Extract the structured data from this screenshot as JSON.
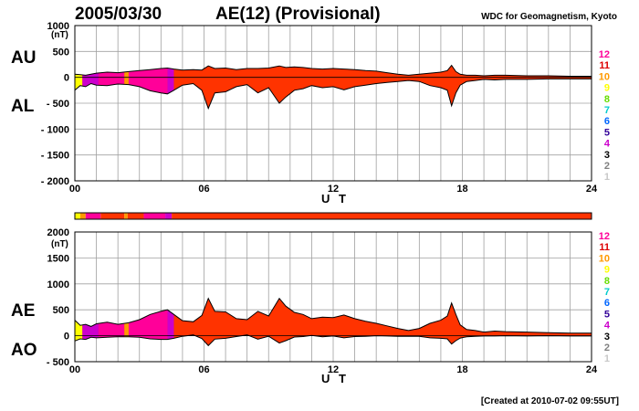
{
  "header": {
    "date": "2005/03/30",
    "title": "AE(12) (Provisional)",
    "source": "WDC for Geomagnetism, Kyoto"
  },
  "footer": {
    "created": "[Created at 2010-07-02 09:55UT]"
  },
  "colors": {
    "fill": "#ff3300",
    "outline": "#000000",
    "grid": "#a0a0a0",
    "stations_palette": {
      "1": "#c8c8c8",
      "2": "#808080",
      "3": "#000000",
      "4": "#cc00cc",
      "5": "#330099",
      "6": "#0066ff",
      "7": "#00cccc",
      "8": "#66dd00",
      "9": "#ffff00",
      "10": "#ff9900",
      "11": "#dd0000",
      "12": "#ff0099"
    }
  },
  "legend": [
    "12",
    "11",
    "10",
    "9",
    "8",
    "7",
    "6",
    "5",
    "4",
    "3",
    "2",
    "1"
  ],
  "chart_data": [
    {
      "type": "area",
      "panel": "AU/AL",
      "labels": {
        "upper": "AU",
        "lower": "AL"
      },
      "unit": "(nT)",
      "xlabel": "U T",
      "xlim": [
        0,
        24
      ],
      "xticks": [
        "00",
        "06",
        "12",
        "18",
        "24"
      ],
      "ylim": [
        -2000,
        1000
      ],
      "yticks": [
        "1000",
        "500",
        "0",
        "- 500",
        "- 1000",
        "- 1500",
        "- 2000"
      ],
      "grid": true,
      "x": [
        0,
        0.25,
        0.5,
        0.75,
        1,
        1.5,
        2,
        2.5,
        3,
        3.5,
        4,
        4.3,
        4.6,
        5,
        5.5,
        5.9,
        6.2,
        6.5,
        7,
        7.5,
        8,
        8.5,
        9,
        9.5,
        9.8,
        10.2,
        10.6,
        11,
        11.5,
        12,
        12.5,
        13,
        13.5,
        14,
        14.5,
        15,
        15.5,
        16,
        16.5,
        17,
        17.3,
        17.5,
        17.7,
        17.9,
        18.2,
        18.6,
        19,
        19.5,
        20,
        21,
        22,
        23,
        24
      ],
      "series": [
        {
          "name": "AU",
          "values": [
            60,
            50,
            40,
            60,
            80,
            100,
            90,
            110,
            130,
            150,
            170,
            180,
            160,
            140,
            150,
            140,
            220,
            170,
            180,
            150,
            170,
            170,
            180,
            220,
            190,
            200,
            190,
            170,
            160,
            170,
            160,
            150,
            130,
            120,
            90,
            60,
            40,
            60,
            80,
            100,
            130,
            230,
            110,
            60,
            40,
            40,
            30,
            40,
            40,
            30,
            30,
            20,
            20
          ]
        },
        {
          "name": "AL",
          "values": [
            -250,
            -160,
            -180,
            -120,
            -150,
            -160,
            -130,
            -140,
            -180,
            -260,
            -300,
            -320,
            -250,
            -150,
            -120,
            -250,
            -600,
            -300,
            -280,
            -180,
            -140,
            -300,
            -200,
            -500,
            -380,
            -250,
            -220,
            -160,
            -200,
            -180,
            -240,
            -180,
            -150,
            -120,
            -100,
            -80,
            -60,
            -80,
            -160,
            -200,
            -250,
            -550,
            -300,
            -150,
            -80,
            -60,
            -40,
            -50,
            -40,
            -40,
            -30,
            -30,
            -30
          ]
        }
      ]
    },
    {
      "type": "area",
      "panel": "AE/AO",
      "labels": {
        "upper": "AE",
        "lower": "AO"
      },
      "unit": "(nT)",
      "xlabel": "U T",
      "xlim": [
        0,
        24
      ],
      "xticks": [
        "00",
        "06",
        "12",
        "18",
        "24"
      ],
      "ylim": [
        -500,
        2000
      ],
      "yticks": [
        "2000",
        "1500",
        "1000",
        "500",
        "0",
        "- 500"
      ],
      "grid": true,
      "x": [
        0,
        0.25,
        0.5,
        0.75,
        1,
        1.5,
        2,
        2.5,
        3,
        3.5,
        4,
        4.3,
        4.6,
        5,
        5.5,
        5.9,
        6.2,
        6.5,
        7,
        7.5,
        8,
        8.5,
        9,
        9.5,
        9.8,
        10.2,
        10.6,
        11,
        11.5,
        12,
        12.5,
        13,
        13.5,
        14,
        14.5,
        15,
        15.5,
        16,
        16.5,
        17,
        17.3,
        17.5,
        17.7,
        17.9,
        18.2,
        18.6,
        19,
        19.5,
        20,
        21,
        22,
        23,
        24
      ],
      "series": [
        {
          "name": "AE",
          "values": [
            300,
            200,
            220,
            180,
            230,
            260,
            220,
            250,
            310,
            410,
            470,
            500,
            410,
            290,
            270,
            390,
            720,
            470,
            460,
            330,
            310,
            470,
            380,
            720,
            570,
            450,
            410,
            330,
            360,
            350,
            400,
            330,
            280,
            240,
            190,
            140,
            100,
            140,
            240,
            300,
            380,
            630,
            410,
            210,
            120,
            100,
            70,
            90,
            80,
            70,
            60,
            50,
            50
          ]
        },
        {
          "name": "AO",
          "values": [
            -100,
            -60,
            -70,
            -30,
            -40,
            -30,
            -20,
            -20,
            -30,
            -60,
            -70,
            -70,
            -50,
            -10,
            15,
            -55,
            -190,
            -65,
            -50,
            -15,
            15,
            -65,
            -10,
            -140,
            -95,
            -25,
            -15,
            5,
            -20,
            -5,
            -40,
            -15,
            -10,
            0,
            -5,
            -10,
            -10,
            -10,
            -40,
            -50,
            -60,
            -160,
            -95,
            -45,
            -20,
            -10,
            -5,
            -5,
            0,
            -5,
            0,
            -5,
            -5
          ]
        }
      ]
    }
  ]
}
